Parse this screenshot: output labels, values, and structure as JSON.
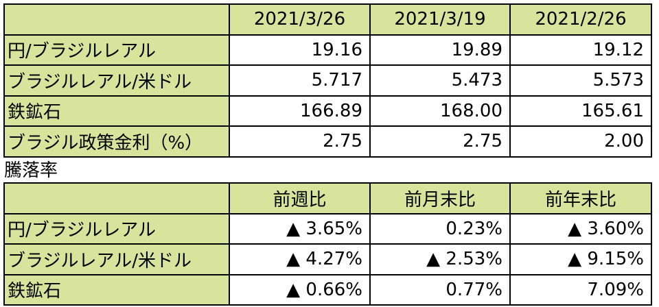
{
  "table1": {
    "header": [
      "2021/3/26",
      "2021/3/19",
      "2021/2/26"
    ],
    "rows": [
      {
        "label": "円/ブラジルレアル",
        "values": [
          "19.16",
          "19.89",
          "19.12"
        ]
      },
      {
        "label": "ブラジルレアル/米ドル",
        "values": [
          "5.717",
          "5.473",
          "5.573"
        ]
      },
      {
        "label": "鉄鉱石",
        "values": [
          "166.89",
          "168.00",
          "165.61"
        ]
      },
      {
        "label": "ブラジル政策金利（%）",
        "values": [
          "2.75",
          "2.75",
          "2.00"
        ]
      }
    ]
  },
  "section_label": "騰落率",
  "table2": {
    "header": [
      "前週比",
      "前月末比",
      "前年末比"
    ],
    "rows": [
      {
        "label": "円/ブラジルレアル",
        "values": [
          "▲ 3.65%",
          "0.23%",
          "▲ 3.60%"
        ]
      },
      {
        "label": "ブラジルレアル/米ドル",
        "values": [
          "▲ 4.27%",
          "▲ 2.53%",
          "▲ 9.15%"
        ]
      },
      {
        "label": "鉄鉱石",
        "values": [
          "▲ 0.66%",
          "0.77%",
          "7.09%"
        ]
      }
    ]
  }
}
